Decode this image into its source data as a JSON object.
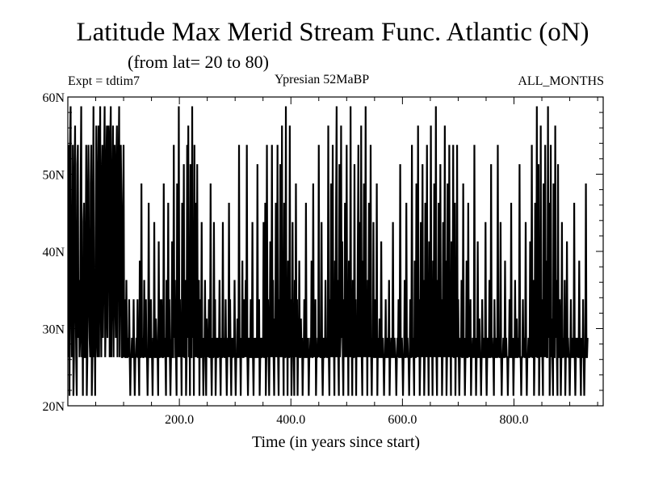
{
  "chart_data": {
    "type": "line",
    "title": "Latitude Max Merid Stream Func. Atlantic (oN)",
    "subtitle": "(from lat= 20 to 80)",
    "annotations": {
      "left": "Expt = tdtim7",
      "center": "Ypresian  52MaBP",
      "right": "ALL_MONTHS"
    },
    "xlabel": "Time (in years since start)",
    "ylabel": "",
    "xlim": [
      0,
      960
    ],
    "ylim": [
      20,
      60
    ],
    "x_ticks": [
      200,
      400,
      600,
      800
    ],
    "x_tick_labels": [
      "200.0",
      "400.0",
      "600.0",
      "800.0"
    ],
    "y_ticks": [
      20,
      30,
      40,
      50,
      60
    ],
    "y_tick_labels": [
      "20N",
      "30N",
      "40N",
      "50N",
      "60N"
    ],
    "grid": false,
    "legend": "none",
    "line_color": "#000000",
    "series": [
      {
        "x_start": 1,
        "x_step": 1,
        "levels": [
          21.3,
          26.3,
          28.8,
          31.3,
          33.8,
          36.3,
          38.8,
          41.3,
          43.8,
          46.3,
          48.8,
          51.3,
          53.8,
          56.3,
          58.8
        ],
        "values": [
          26,
          54,
          21,
          53,
          58,
          34,
          26,
          30,
          55,
          21,
          26,
          49,
          57,
          34,
          27,
          21,
          51,
          55,
          28,
          36,
          26,
          29,
          49,
          58,
          26,
          33,
          21,
          45,
          46,
          27,
          26,
          38,
          55,
          21,
          27,
          46,
          54,
          34,
          28,
          26,
          49,
          54,
          22,
          26,
          44,
          58,
          26,
          33,
          21,
          42,
          56,
          30,
          26,
          48,
          56,
          27,
          46,
          58,
          34,
          26,
          50,
          53,
          28,
          36,
          52,
          58,
          26,
          31,
          52,
          56,
          28,
          42,
          57,
          51,
          26,
          54,
          58,
          26,
          33,
          50,
          56,
          27,
          46,
          55,
          34,
          28,
          51,
          56,
          27,
          38,
          52,
          58,
          26,
          36,
          53,
          47,
          27,
          26,
          43,
          55,
          26,
          33,
          24,
          27,
          37,
          26,
          26,
          28,
          26,
          33,
          26,
          21,
          27,
          26,
          29,
          26,
          26,
          35,
          26,
          22,
          27,
          26,
          28,
          26,
          33,
          26,
          27,
          21,
          38,
          26,
          26,
          48,
          26,
          28,
          26,
          26,
          36,
          26,
          28,
          34,
          26,
          26,
          22,
          26,
          46,
          28,
          26,
          26,
          33,
          26,
          27,
          21,
          28,
          26,
          44,
          26,
          26,
          31,
          28,
          26,
          26,
          22,
          42,
          26,
          26,
          34,
          26,
          33,
          27,
          26,
          26,
          50,
          26,
          29,
          26,
          21,
          36,
          26,
          28,
          46,
          26,
          33,
          26,
          22,
          26,
          28,
          41,
          26,
          26,
          54,
          30,
          36,
          26,
          26,
          22,
          48,
          26,
          28,
          58,
          26,
          34,
          26,
          30,
          21,
          46,
          26,
          28,
          51,
          26,
          26,
          36,
          21,
          26,
          54,
          28,
          56,
          26,
          34,
          21,
          51,
          26,
          26,
          58,
          29,
          42,
          21,
          53,
          26,
          46,
          28,
          26,
          51,
          26,
          26,
          36,
          22,
          34,
          26,
          27,
          43,
          26,
          28,
          21,
          29,
          26,
          36,
          26,
          22,
          31,
          26,
          28,
          26,
          33,
          26,
          26,
          50,
          26,
          21,
          29,
          26,
          26,
          43,
          26,
          34,
          22,
          26,
          30,
          26,
          26,
          28,
          26,
          36,
          26,
          21,
          29,
          26,
          26,
          44,
          26,
          28,
          26,
          26,
          33,
          26,
          21,
          26,
          28,
          26,
          46,
          26,
          33,
          26,
          22,
          28,
          26,
          26,
          30,
          26,
          36,
          27,
          21,
          26,
          26,
          31,
          26,
          26,
          54,
          26,
          28,
          21,
          29,
          26,
          38,
          26,
          26,
          34,
          26,
          28,
          36,
          26,
          53,
          26,
          21,
          26,
          29,
          26,
          26,
          33,
          26,
          26,
          44,
          26,
          22,
          28,
          26,
          26,
          30,
          26,
          26,
          51,
          26,
          26,
          35,
          21,
          26,
          29,
          26,
          26,
          30,
          26,
          43,
          26,
          26,
          46,
          22,
          27,
          54,
          26,
          33,
          26,
          21,
          30,
          41,
          26,
          28,
          53,
          26,
          36,
          26,
          22,
          31,
          26,
          47,
          26,
          28,
          55,
          26,
          21,
          33,
          26,
          52,
          26,
          28,
          56,
          26,
          30,
          21,
          46,
          26,
          27,
          58,
          26,
          36,
          21,
          38,
          26,
          26,
          56,
          26,
          34,
          21,
          26,
          44,
          26,
          28,
          21,
          36,
          26,
          50,
          26,
          33,
          22,
          29,
          26,
          38,
          26,
          26,
          31,
          26,
          28,
          21,
          26,
          26,
          33,
          26,
          26,
          46,
          26,
          27,
          26,
          30,
          22,
          26,
          26,
          28,
          26,
          38,
          26,
          26,
          48,
          26,
          29,
          26,
          33,
          21,
          26,
          26,
          28,
          26,
          54,
          26,
          30,
          26,
          26,
          43,
          26,
          22,
          26,
          28,
          26,
          26,
          36,
          26,
          29,
          26,
          26,
          56,
          26,
          21,
          33,
          26,
          48,
          26,
          28,
          55,
          26,
          30,
          22,
          38,
          26,
          46,
          58,
          26,
          36,
          26,
          21,
          51,
          26,
          29,
          56,
          28,
          42,
          26,
          21,
          33,
          26,
          46,
          26,
          28,
          54,
          26,
          34,
          21,
          40,
          26,
          28,
          58,
          26,
          30,
          21,
          36,
          26,
          26,
          52,
          26,
          33,
          21,
          31,
          26,
          41,
          55,
          26,
          28,
          44,
          26,
          56,
          26,
          21,
          38,
          26,
          48,
          26,
          28,
          58,
          26,
          34,
          21,
          36,
          26,
          46,
          26,
          30,
          54,
          26,
          22,
          28,
          26,
          44,
          26,
          26,
          33,
          26,
          26,
          48,
          21,
          28,
          26,
          26,
          31,
          26,
          26,
          41,
          26,
          26,
          28,
          26,
          21,
          26,
          26,
          33,
          26,
          26,
          29,
          26,
          26,
          36,
          21,
          26,
          26,
          28,
          26,
          26,
          43,
          26,
          26,
          30,
          26,
          26,
          22,
          26,
          28,
          26,
          33,
          26,
          26,
          51,
          26,
          26,
          29,
          26,
          21,
          26,
          26,
          36,
          26,
          26,
          46,
          26,
          28,
          26,
          26,
          22,
          26,
          33,
          26,
          26,
          55,
          26,
          29,
          26,
          21,
          38,
          26,
          26,
          50,
          28,
          26,
          56,
          26,
          33,
          22,
          26,
          43,
          26,
          28,
          51,
          26,
          36,
          21,
          26,
          46,
          26,
          30,
          54,
          26,
          28,
          21,
          42,
          26,
          34,
          56,
          26,
          28,
          22,
          38,
          26,
          50,
          26,
          30,
          58,
          26,
          21,
          36,
          26,
          46,
          26,
          28,
          52,
          26,
          33,
          21,
          26,
          44,
          26,
          29,
          56,
          26,
          38,
          22,
          26,
          48,
          26,
          30,
          54,
          26,
          28,
          21,
          41,
          26,
          33,
          53,
          26,
          26,
          46,
          21,
          28,
          26,
          55,
          26,
          34,
          26,
          22,
          26,
          28,
          26,
          36,
          26,
          26,
          50,
          26,
          29,
          21,
          26,
          26,
          38,
          26,
          26,
          47,
          26,
          28,
          26,
          33,
          22,
          26,
          26,
          30,
          26,
          26,
          53,
          26,
          28,
          21,
          26,
          26,
          41,
          26,
          26,
          31,
          26,
          26,
          22,
          26,
          34,
          26,
          26,
          28,
          26,
          26,
          44,
          26,
          21,
          26,
          29,
          26,
          26,
          36,
          26,
          26,
          51,
          26,
          28,
          26,
          26,
          21,
          33,
          26,
          26,
          30,
          26,
          26,
          55,
          26,
          28,
          26,
          26,
          43,
          26,
          21,
          26,
          26,
          30,
          26,
          26,
          38,
          26,
          28,
          26,
          26,
          22,
          26,
          26,
          33,
          26,
          26,
          46,
          26,
          26,
          28,
          21,
          26,
          26,
          36,
          26,
          26,
          31,
          26,
          26,
          29,
          26,
          52,
          26,
          26,
          22,
          26,
          26,
          34,
          26,
          28,
          26,
          26,
          44,
          26,
          21,
          26,
          26,
          30,
          26,
          26,
          41,
          26,
          28,
          54,
          26,
          26,
          36,
          21,
          26,
          46,
          26,
          30,
          58,
          26,
          26,
          52,
          22,
          28,
          26,
          56,
          26,
          33,
          26,
          21,
          50,
          26,
          29,
          54,
          26,
          38,
          26,
          26,
          58,
          28,
          46,
          21,
          26,
          53,
          26,
          31,
          26,
          21,
          48,
          26,
          26,
          56,
          28,
          36,
          26,
          22,
          51,
          26,
          26,
          34,
          28,
          21,
          26,
          43,
          26,
          26,
          29,
          26,
          36,
          22,
          26,
          26,
          41,
          26,
          28,
          26,
          26,
          21,
          26,
          34,
          26,
          26,
          29,
          26,
          26,
          46,
          26,
          21,
          26,
          28,
          26,
          30,
          26,
          26,
          38,
          26,
          26,
          22,
          28,
          26,
          26,
          33,
          26,
          21,
          26,
          26,
          48,
          26,
          26,
          29
        ]
      }
    ]
  }
}
